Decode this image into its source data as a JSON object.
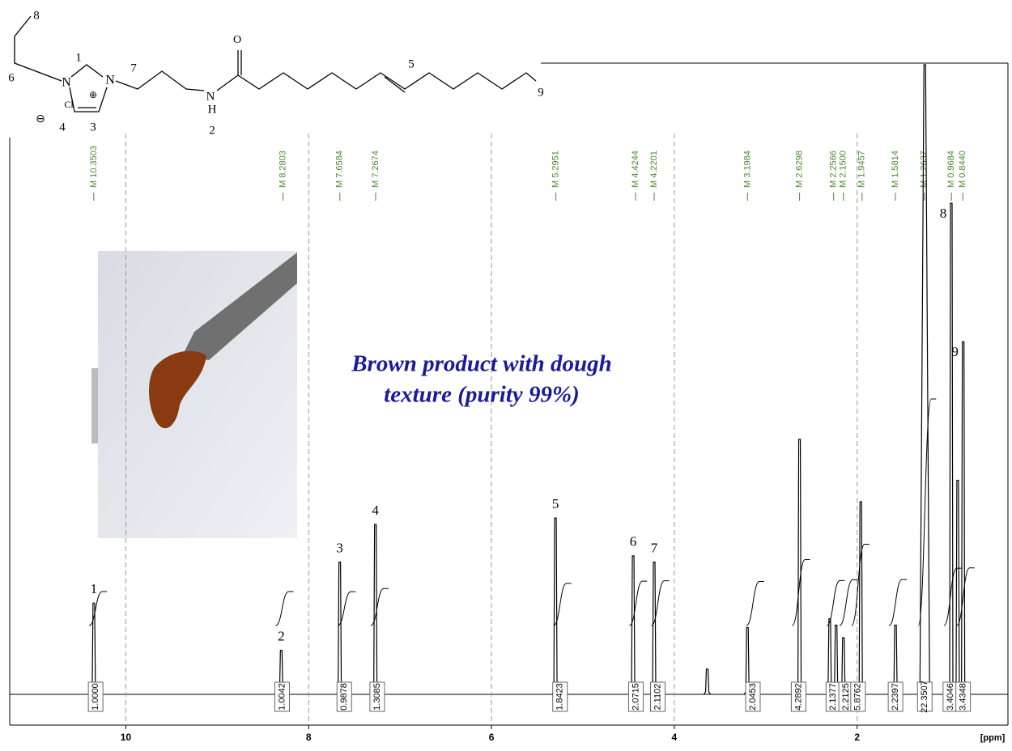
{
  "chart_data": {
    "type": "nmr",
    "x_label": "[ppm]",
    "xlim": [
      11.27,
      0.35
    ],
    "xticks": [
      10,
      8,
      6,
      4,
      2
    ],
    "ylim": [
      0,
      100
    ],
    "grid": true,
    "color": "#000000",
    "peaks": {
      "x": [
        10.35,
        8.3,
        7.66,
        7.27,
        5.3,
        4.45,
        4.22,
        3.64,
        3.2,
        2.63,
        2.3,
        2.23,
        2.15,
        1.96,
        1.58,
        1.26,
        0.97,
        0.9,
        0.84
      ],
      "values": [
        14.5,
        7,
        21,
        27,
        28,
        22,
        21,
        4,
        10.6,
        40.5,
        12,
        11,
        9,
        30.6,
        11,
        100,
        78,
        34,
        56
      ],
      "labels": [
        "1",
        "2",
        "3",
        "4",
        "5",
        "6",
        "7",
        null,
        null,
        null,
        null,
        null,
        null,
        null,
        null,
        null,
        "8",
        null,
        "9"
      ]
    },
    "peak_picks": [
      {
        "value": 10.3503,
        "label": "M 10.3503"
      },
      {
        "value": 8.2803,
        "label": "M 8.2803"
      },
      {
        "value": 7.6584,
        "label": "M 7.6584"
      },
      {
        "value": 7.2674,
        "label": "M 7.2674"
      },
      {
        "value": 5.2951,
        "label": "M 5.2951"
      },
      {
        "value": 4.4244,
        "label": "M 4.4244"
      },
      {
        "value": 4.2201,
        "label": "M 4.2201"
      },
      {
        "value": 3.1984,
        "label": "M 3.1984"
      },
      {
        "value": 2.6298,
        "label": "M 2.6298"
      },
      {
        "value": 2.2566,
        "label": "M 2.2566"
      },
      {
        "value": 2.15,
        "label": "M 2.1500"
      },
      {
        "value": 1.9457,
        "label": "M 1.9457"
      },
      {
        "value": 1.5814,
        "label": "M 1.5814"
      },
      {
        "value": 1.2637,
        "label": "M 1.2637"
      },
      {
        "value": 0.9684,
        "label": "M 0.9684"
      },
      {
        "value": 0.844,
        "label": "M 0.8440"
      }
    ],
    "integrals": {
      "x": [
        10.33,
        8.29,
        7.61,
        7.25,
        5.25,
        4.42,
        4.18,
        3.14,
        2.64,
        2.26,
        2.12,
        1.99,
        1.58,
        1.26,
        0.98,
        0.84
      ],
      "values": [
        1,
        1.0042,
        0.9878,
        1.3085,
        1.8423,
        2.0715,
        2.1102,
        2.0453,
        4.2892,
        2.1377,
        2.2125,
        5.8762,
        2.2397,
        22.3507,
        3.4046,
        3.4348
      ],
      "value_labels": [
        "1.0000",
        "1.0042",
        "0.9878",
        "1.3085",
        "1.8423",
        "2.0715",
        "2.1102",
        "2.0453",
        "4.2892",
        "2.1377",
        "2.2125",
        "5.8762",
        "2.2397",
        "22.3507",
        "3.4046",
        "3.4348"
      ]
    },
    "annotation": [
      "Brown product with dough",
      "texture (purity 99%)"
    ],
    "structure": [
      "8",
      "6",
      "N",
      "1",
      "⊕",
      "N",
      "7",
      "Cl",
      "⊖",
      "4",
      "3",
      "O",
      "N",
      "H",
      "2",
      "5",
      "9"
    ]
  }
}
